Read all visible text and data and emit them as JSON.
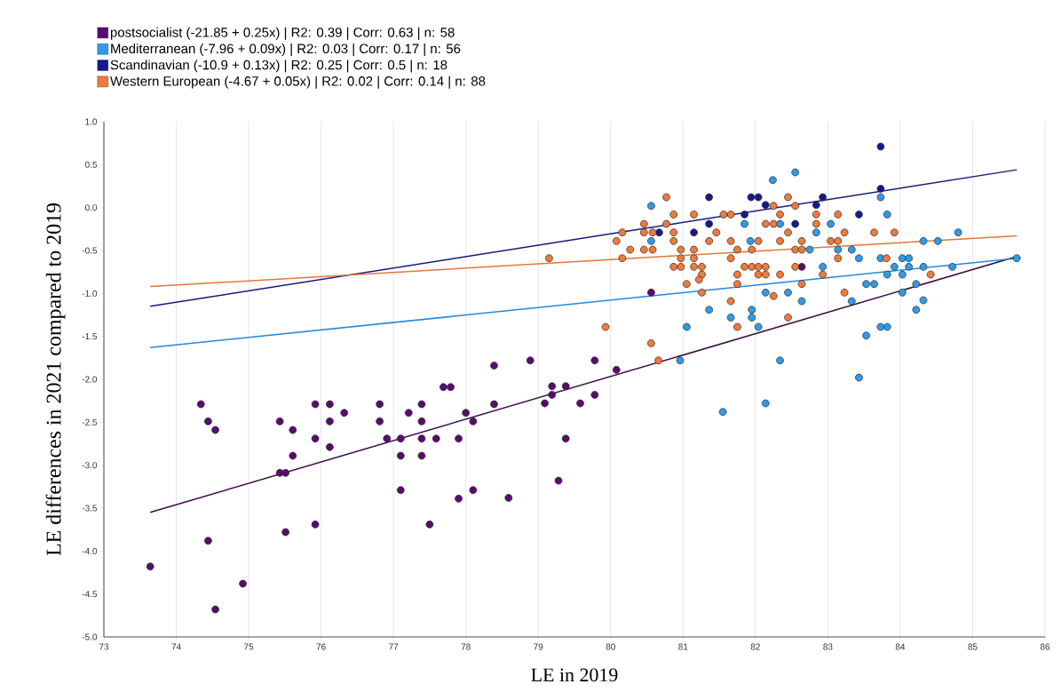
{
  "chart_data": {
    "type": "scatter",
    "xlabel": "LE in 2019",
    "ylabel": "LE differences in 2021 compared to 2019",
    "xlim": [
      73,
      86
    ],
    "ylim": [
      -5,
      1
    ],
    "xticks": [
      73,
      74,
      75,
      76,
      77,
      78,
      79,
      80,
      81,
      82,
      83,
      84,
      85,
      86
    ],
    "yticks": [
      {
        "value": 1,
        "label": "1.0"
      },
      0.5,
      {
        "value": 0,
        "label": "0.0"
      },
      -0.5,
      {
        "value": -1,
        "label": "-1.0"
      },
      -1.5,
      {
        "value": -2,
        "label": "-2.0"
      },
      -2.5,
      {
        "value": -3,
        "label": "-3.0"
      },
      -3.5,
      {
        "value": -4,
        "label": "-4.0"
      },
      -4.5,
      {
        "value": -5,
        "label": "-5.0"
      }
    ],
    "grid": "x",
    "legend": "top left",
    "series": [
      {
        "name": "postsocialist (-21.85 + 0.25x) | R2: 0.39 | Corr: 0.63 | n: 58",
        "marker": "circle",
        "color": "#5a0b6e",
        "x": [
          73.64,
          74.34,
          74.44,
          74.54,
          74.44,
          74.54,
          74.92,
          75.43,
          75.61,
          75.92,
          76.12,
          76.32,
          76.12,
          75.92,
          76.12,
          75.61,
          75.43,
          75.51,
          75.51,
          75.92,
          76.81,
          76.81,
          76.91,
          77.1,
          77.21,
          77.39,
          77.39,
          77.39,
          77.59,
          77.1,
          77.39,
          77.1,
          77.5,
          77.69,
          77.79,
          78.0,
          78.1,
          77.9,
          77.9,
          78.1,
          78.39,
          78.39,
          78.89,
          79.78,
          80.08,
          79.19,
          79.38,
          79.19,
          79.09,
          79.58,
          79.78,
          79.38,
          79.28,
          78.59,
          80.56,
          82.64
        ],
        "values": [
          -4.18,
          -2.29,
          -2.49,
          -2.59,
          -3.88,
          -4.68,
          -4.38,
          -2.49,
          -2.59,
          -2.29,
          -2.29,
          -2.39,
          -2.49,
          -2.69,
          -2.79,
          -2.89,
          -3.09,
          -3.09,
          -3.78,
          -3.69,
          -2.29,
          -2.49,
          -2.69,
          -2.69,
          -2.39,
          -2.29,
          -2.49,
          -2.69,
          -2.69,
          -2.89,
          -2.89,
          -3.29,
          -3.69,
          -2.09,
          -2.09,
          -2.39,
          -2.49,
          -2.69,
          -3.39,
          -3.29,
          -1.84,
          -2.29,
          -1.78,
          -1.78,
          -1.89,
          -2.08,
          -2.08,
          -2.18,
          -2.28,
          -2.28,
          -2.18,
          -2.69,
          -3.18,
          -3.38,
          -0.99,
          -0.69
        ]
      },
      {
        "name": "Mediterranean (-7.96 + 0.09x) | R2: 0.03 | Corr: 0.17 | n: 56",
        "marker": "circle",
        "color": "#2f9be8",
        "x": [
          82.24,
          82.55,
          80.56,
          81.85,
          82.34,
          83.04,
          80.56,
          81.93,
          82.84,
          82.75,
          83.14,
          83.33,
          83.43,
          83.73,
          82.93,
          83.82,
          83.92,
          83.53,
          83.64,
          82.14,
          82.45,
          82.64,
          83.33,
          81.36,
          81.95,
          81.66,
          81.95,
          82.04,
          81.05,
          83.53,
          83.73,
          83.82,
          80.96,
          82.34,
          83.73,
          83.82,
          81.55,
          82.14,
          83.43,
          84.8,
          84.32,
          84.52,
          84.03,
          84.12,
          84.12,
          84.32,
          84.72,
          85.61,
          84.03,
          84.22,
          84.03,
          84.32,
          84.22
        ],
        "values": [
          0.32,
          0.41,
          0.02,
          -0.19,
          -0.19,
          -0.19,
          -0.39,
          -0.39,
          -0.29,
          -0.49,
          -0.49,
          -0.49,
          -0.59,
          -0.59,
          -0.69,
          -0.78,
          -0.69,
          -0.89,
          -0.89,
          -0.99,
          -0.99,
          -1.09,
          -1.09,
          -1.19,
          -1.19,
          -1.28,
          -1.28,
          -1.39,
          -1.39,
          -1.49,
          -1.39,
          -1.39,
          -1.78,
          -1.78,
          0.12,
          -0.08,
          -2.38,
          -2.28,
          -1.98,
          -0.29,
          -0.39,
          -0.39,
          -0.59,
          -0.59,
          -0.69,
          -0.69,
          -0.69,
          -0.59,
          -0.78,
          -0.89,
          -0.99,
          -1.08,
          -1.19
        ]
      },
      {
        "name": "Scandinavian (-10.9 + 0.13x) | R2: 0.25 | Corr: 0.5 | n: 18",
        "marker": "circle",
        "color": "#141a8c",
        "x": [
          81.36,
          81.94,
          82.04,
          82.14,
          82.93,
          82.84,
          81.85,
          81.36,
          82.55,
          81.15,
          80.67,
          83.43,
          83.73,
          83.73
        ],
        "values": [
          0.12,
          0.12,
          0.12,
          0.03,
          0.12,
          0.03,
          -0.08,
          -0.19,
          -0.19,
          -0.29,
          -0.29,
          -0.08,
          0.22,
          0.71
        ]
      },
      {
        "name": "Western European (-4.67 + 0.05x) | R2: 0.02 | Corr: 0.14 | n: 88",
        "marker": "circle",
        "color": "#f07a3a",
        "x": [
          80.77,
          80.87,
          81.15,
          80.46,
          80.77,
          80.46,
          80.58,
          80.87,
          80.16,
          80.08,
          80.27,
          80.46,
          80.58,
          80.16,
          80.87,
          80.97,
          81.15,
          80.97,
          81.15,
          80.87,
          80.97,
          81.15,
          81.26,
          81.26,
          81.22,
          81.05,
          81.26,
          80.56,
          80.66,
          79.93,
          81.56,
          81.66,
          81.46,
          81.36,
          81.66,
          81.75,
          81.66,
          81.95,
          82.04,
          81.85,
          81.95,
          82.04,
          82.14,
          81.75,
          81.75,
          82.04,
          82.14,
          82.34,
          82.25,
          82.34,
          82.45,
          82.55,
          82.14,
          82.25,
          82.45,
          82.34,
          82.55,
          82.64,
          82.64,
          82.55,
          82.64,
          82.25,
          81.66,
          81.75,
          82.45,
          82.84,
          82.84,
          83.14,
          83.23,
          83.04,
          83.14,
          83.14,
          83.64,
          83.92,
          82.93,
          83.23,
          79.15,
          83.81,
          84.42
        ],
        "values": [
          0.12,
          -0.08,
          -0.08,
          -0.19,
          -0.19,
          -0.29,
          -0.29,
          -0.29,
          -0.29,
          -0.39,
          -0.49,
          -0.49,
          -0.49,
          -0.59,
          -0.39,
          -0.49,
          -0.49,
          -0.59,
          -0.59,
          -0.69,
          -0.69,
          -0.69,
          -0.69,
          -0.78,
          -0.84,
          -0.89,
          -0.99,
          -1.58,
          -1.78,
          -1.39,
          -0.08,
          -0.08,
          -0.29,
          -0.39,
          -0.39,
          -0.49,
          -0.59,
          -0.49,
          -0.39,
          -0.69,
          -0.69,
          -0.69,
          -0.69,
          -0.78,
          -0.89,
          -0.78,
          -0.78,
          -0.78,
          0.02,
          -0.08,
          0.12,
          0.02,
          -0.19,
          -0.19,
          -0.29,
          -0.39,
          -0.49,
          -0.49,
          -0.39,
          -0.69,
          -0.89,
          -1.03,
          -1.09,
          -1.39,
          -1.28,
          -0.08,
          -0.19,
          -0.08,
          -0.29,
          -0.39,
          -0.39,
          -0.59,
          -0.29,
          -0.29,
          -0.78,
          -0.99,
          -0.59,
          -0.59,
          -0.78
        ]
      },
      {
        "type": "line",
        "marker": "none",
        "color": "#3a0b45",
        "x": [
          73.64,
          85.61
        ],
        "values": [
          -3.55,
          -0.57
        ]
      },
      {
        "type": "line",
        "marker": "none",
        "color": "#2288dd",
        "x": [
          73.64,
          85.61
        ],
        "values": [
          -1.63,
          -0.59
        ]
      },
      {
        "type": "line",
        "marker": "none",
        "color": "#151a7a",
        "x": [
          73.64,
          85.61
        ],
        "values": [
          -1.15,
          0.44
        ]
      },
      {
        "type": "line",
        "marker": "none",
        "color": "#e8743a",
        "x": [
          73.64,
          85.61
        ],
        "values": [
          -0.92,
          -0.33
        ]
      }
    ]
  }
}
